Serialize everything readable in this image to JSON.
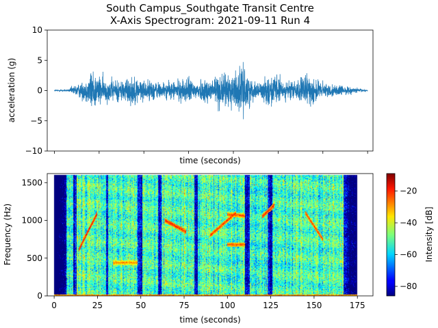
{
  "chart_data": [
    {
      "type": "line",
      "title": "South Campus_Southgate Transit Centre",
      "subtitle": "X-Axis Spectrogram: 2021-09-11 Run 4",
      "xlabel": "time (seconds)",
      "ylabel": "acceleration (g)",
      "xlim": [
        -4,
        178
      ],
      "ylim": [
        -10,
        10
      ],
      "yticks": [
        -10,
        -5,
        0,
        5,
        10
      ],
      "xticks": [
        0,
        25,
        50,
        75,
        100,
        125,
        150,
        175
      ],
      "show_xtick_labels": false,
      "color": "#1f77b4",
      "envelope": {
        "t": [
          0,
          8,
          10,
          14,
          17,
          20,
          21,
          22,
          23,
          25,
          30,
          35,
          40,
          45,
          50,
          55,
          60,
          65,
          70,
          75,
          78,
          82,
          87,
          92,
          95,
          100,
          104,
          106,
          108,
          110,
          113,
          118,
          122,
          125,
          128,
          135,
          140,
          145,
          150,
          155,
          160,
          165,
          170,
          175
        ],
        "amp": [
          0.1,
          0.15,
          0.6,
          1.0,
          1.5,
          2.3,
          3.5,
          2.8,
          2.5,
          2.0,
          1.6,
          1.5,
          1.8,
          2.0,
          1.3,
          1.5,
          1.1,
          1.2,
          1.5,
          1.8,
          1.3,
          1.5,
          1.9,
          2.4,
          2.2,
          2.6,
          3.2,
          3.0,
          2.7,
          1.5,
          0.9,
          1.7,
          2.3,
          2.0,
          1.2,
          1.4,
          2.1,
          1.9,
          1.1,
          0.8,
          0.7,
          0.5,
          0.3,
          0.1
        ]
      }
    },
    {
      "type": "heatmap",
      "xlabel": "time (seconds)",
      "ylabel": "Frequency (Hz)",
      "xlim": [
        -4,
        184
      ],
      "ylim": [
        0,
        1620
      ],
      "xticks": [
        0,
        25,
        50,
        75,
        100,
        125,
        150,
        175
      ],
      "yticks": [
        0,
        500,
        1000,
        1500
      ],
      "colorbar": {
        "label": "Intensity [dB]",
        "range": [
          -86,
          -9
        ],
        "ticks": [
          -80,
          -60,
          -40,
          -20
        ],
        "colormap": "jet"
      },
      "data_time_range": [
        0,
        175
      ],
      "data_freq_range": [
        0,
        1600
      ],
      "background_dB": -52,
      "low_activity_spans": [
        [
          0,
          7
        ],
        [
          11,
          13
        ],
        [
          30,
          31
        ],
        [
          48,
          51
        ],
        [
          60,
          62
        ],
        [
          81,
          83
        ],
        [
          110,
          113
        ],
        [
          123,
          126
        ],
        [
          167,
          175
        ]
      ],
      "ridges": [
        {
          "t": [
            14,
            25
          ],
          "f": [
            600,
            1100
          ],
          "dB": -18
        },
        {
          "t": [
            64,
            76
          ],
          "f": [
            1000,
            850
          ],
          "dB": -20
        },
        {
          "t": [
            90,
            105
          ],
          "f": [
            800,
            1100
          ],
          "dB": -22
        },
        {
          "t": [
            145,
            155
          ],
          "f": [
            1100,
            750
          ],
          "dB": -22
        },
        {
          "t": [
            100,
            110
          ],
          "f": [
            1080,
            1060
          ],
          "dB": -24
        },
        {
          "t": [
            100,
            110
          ],
          "f": [
            680,
            680
          ],
          "dB": -24
        },
        {
          "t": [
            34,
            48
          ],
          "f": [
            440,
            440
          ],
          "dB": -28
        },
        {
          "t": [
            120,
            127
          ],
          "f": [
            1050,
            1200
          ],
          "dB": -20
        }
      ]
    }
  ]
}
